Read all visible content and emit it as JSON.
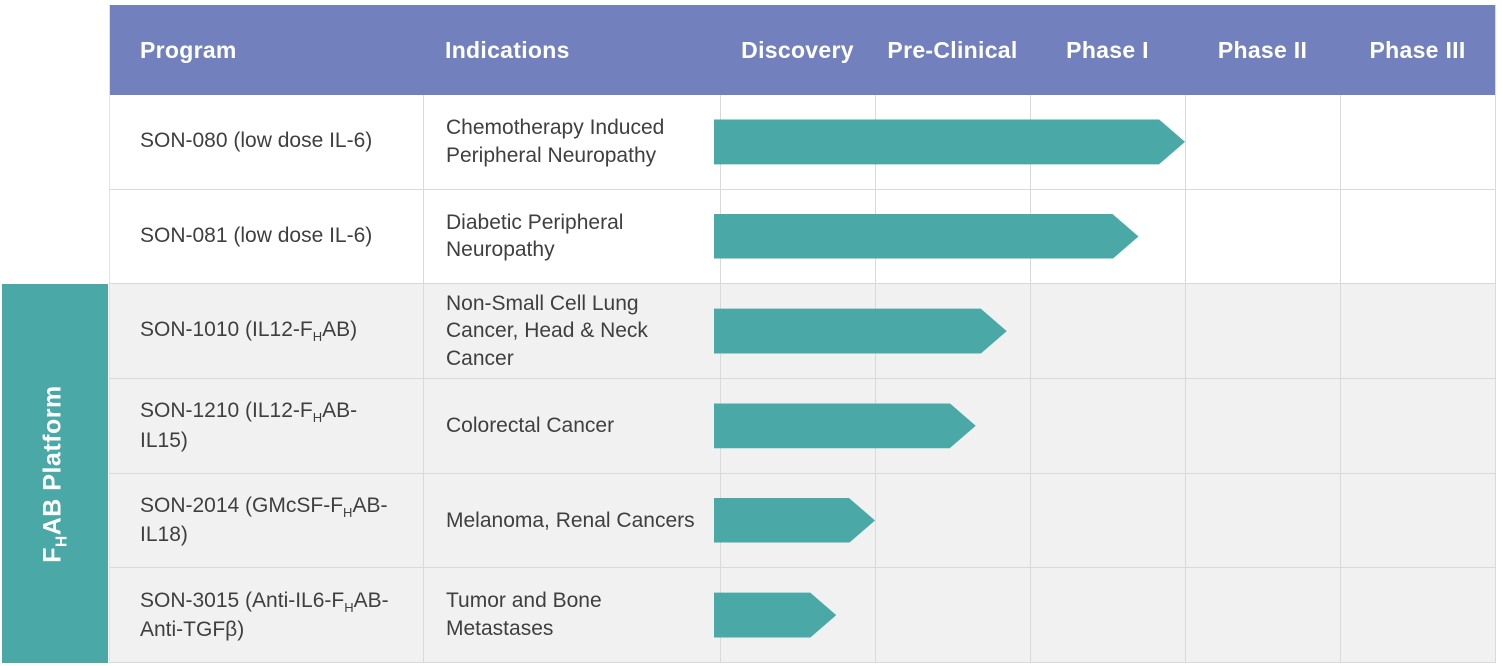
{
  "header": {
    "columns": [
      "Program",
      "Indications",
      "Discovery",
      "Pre-Clinical",
      "Phase I",
      "Phase II",
      "Phase III"
    ]
  },
  "platform_label": {
    "pre": "F",
    "sub": "H",
    "post": "AB Platform"
  },
  "colors": {
    "header_bg": "#7281BE",
    "accent_teal": "#4AA9A6",
    "row_alt_bg": "#F1F1F1",
    "grid_line": "#D9D9D9",
    "text_dark": "#3F3F3F"
  },
  "chart_data": {
    "type": "bar",
    "subtype": "pipeline-gantt",
    "phases": [
      "Discovery",
      "Pre-Clinical",
      "Phase I",
      "Phase II",
      "Phase III"
    ],
    "progress_unit": "phase-columns (1.0 = one full phase column)",
    "xlim": [
      0,
      5
    ],
    "rows": [
      {
        "program_pre": "SON-080 (low dose IL-6)",
        "program_sub": "",
        "program_post": "",
        "indication": "Chemotherapy Induced Peripheral Neuropathy",
        "progress_phases": 3.0,
        "platform_member": false
      },
      {
        "program_pre": "SON-081 (low dose IL-6)",
        "program_sub": "",
        "program_post": "",
        "indication": "Diabetic Peripheral Neuropathy",
        "progress_phases": 2.7,
        "platform_member": false
      },
      {
        "program_pre": "SON-1010 (IL12-F",
        "program_sub": "H",
        "program_post": "AB)",
        "indication": "Non-Small Cell Lung Cancer, Head & Neck Cancer",
        "progress_phases": 1.85,
        "platform_member": true
      },
      {
        "program_pre": "SON-1210 (IL12-F",
        "program_sub": "H",
        "program_post": "AB-IL15)",
        "indication": "Colorectal Cancer",
        "progress_phases": 1.65,
        "platform_member": true
      },
      {
        "program_pre": "SON-2014 (GMcSF-F",
        "program_sub": "H",
        "program_post": "AB-IL18)",
        "indication": "Melanoma, Renal Cancers",
        "progress_phases": 1.0,
        "platform_member": true
      },
      {
        "program_pre": "SON-3015 (Anti-IL6-F",
        "program_sub": "H",
        "program_post": "AB-Anti-TGFβ)",
        "indication": "Tumor and Bone Metastases",
        "progress_phases": 0.75,
        "platform_member": true
      }
    ]
  }
}
